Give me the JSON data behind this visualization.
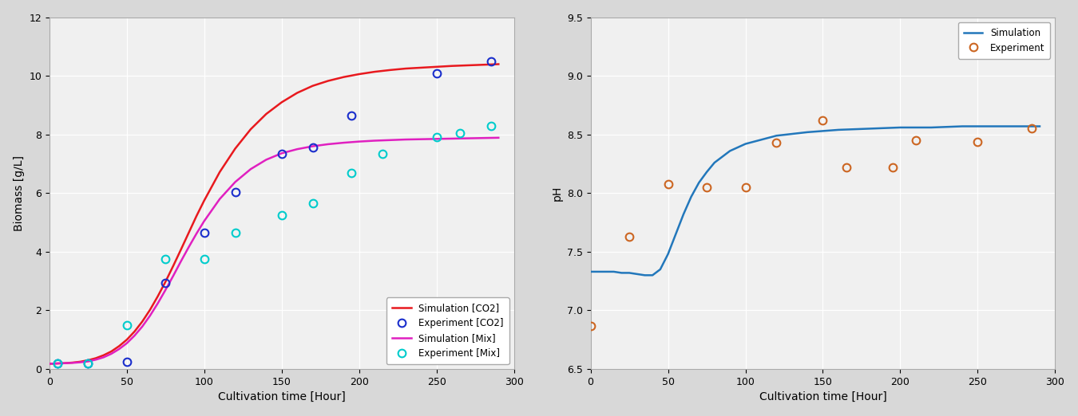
{
  "left": {
    "sim_co2_x": [
      0,
      5,
      10,
      15,
      20,
      25,
      30,
      35,
      40,
      45,
      50,
      55,
      60,
      65,
      70,
      75,
      80,
      85,
      90,
      95,
      100,
      110,
      120,
      130,
      140,
      150,
      160,
      170,
      180,
      190,
      200,
      210,
      220,
      230,
      240,
      250,
      260,
      270,
      280,
      290
    ],
    "sim_co2_y": [
      0.18,
      0.19,
      0.2,
      0.22,
      0.25,
      0.3,
      0.37,
      0.47,
      0.6,
      0.78,
      1.0,
      1.28,
      1.62,
      2.02,
      2.48,
      2.98,
      3.52,
      4.08,
      4.65,
      5.22,
      5.75,
      6.72,
      7.52,
      8.18,
      8.7,
      9.1,
      9.42,
      9.66,
      9.83,
      9.96,
      10.06,
      10.14,
      10.2,
      10.25,
      10.28,
      10.31,
      10.34,
      10.36,
      10.38,
      10.4
    ],
    "exp_co2_x": [
      5,
      25,
      50,
      75,
      100,
      120,
      150,
      170,
      195,
      250,
      285
    ],
    "exp_co2_y": [
      0.18,
      0.18,
      0.25,
      2.95,
      4.65,
      6.05,
      7.35,
      7.55,
      8.65,
      10.1,
      10.5
    ],
    "sim_mix_x": [
      0,
      5,
      10,
      15,
      20,
      25,
      30,
      35,
      40,
      45,
      50,
      55,
      60,
      65,
      70,
      75,
      80,
      85,
      90,
      95,
      100,
      110,
      120,
      130,
      140,
      150,
      160,
      170,
      180,
      190,
      200,
      210,
      220,
      230,
      240,
      250,
      260,
      270,
      280,
      290
    ],
    "sim_mix_y": [
      0.18,
      0.19,
      0.2,
      0.21,
      0.23,
      0.26,
      0.32,
      0.4,
      0.52,
      0.68,
      0.88,
      1.14,
      1.45,
      1.82,
      2.24,
      2.7,
      3.18,
      3.68,
      4.16,
      4.62,
      5.05,
      5.8,
      6.38,
      6.82,
      7.14,
      7.36,
      7.5,
      7.6,
      7.67,
      7.72,
      7.76,
      7.79,
      7.81,
      7.83,
      7.84,
      7.85,
      7.86,
      7.87,
      7.88,
      7.89
    ],
    "exp_mix_x": [
      5,
      25,
      50,
      75,
      100,
      120,
      150,
      170,
      195,
      215,
      250,
      265,
      285
    ],
    "exp_mix_y": [
      0.18,
      0.18,
      1.5,
      3.75,
      3.75,
      4.65,
      5.25,
      5.65,
      6.7,
      7.35,
      7.9,
      8.05,
      8.3
    ],
    "ylabel": "Biomass [g/L]",
    "xlabel": "Cultivation time [Hour]",
    "ylim": [
      0,
      12
    ],
    "xlim": [
      0,
      300
    ],
    "yticks": [
      0,
      2,
      4,
      6,
      8,
      10,
      12
    ],
    "xticks": [
      0,
      50,
      100,
      150,
      200,
      250,
      300
    ],
    "sim_co2_color": "#e8191e",
    "exp_co2_color": "#1a2ecc",
    "sim_mix_color": "#e020c0",
    "exp_mix_color": "#00cccc",
    "legend_labels": [
      "Simulation [CO2]",
      "Experiment [CO2]",
      "Simulation [Mix]",
      "Experiment [Mix]"
    ]
  },
  "right": {
    "sim_x": [
      0,
      2,
      4,
      6,
      8,
      10,
      15,
      20,
      25,
      30,
      35,
      40,
      45,
      50,
      55,
      60,
      65,
      70,
      75,
      80,
      90,
      100,
      120,
      140,
      160,
      180,
      200,
      220,
      240,
      260,
      280,
      290
    ],
    "sim_y": [
      7.33,
      7.33,
      7.33,
      7.33,
      7.33,
      7.33,
      7.33,
      7.32,
      7.32,
      7.31,
      7.3,
      7.3,
      7.35,
      7.48,
      7.65,
      7.82,
      7.97,
      8.09,
      8.18,
      8.26,
      8.36,
      8.42,
      8.49,
      8.52,
      8.54,
      8.55,
      8.56,
      8.56,
      8.57,
      8.57,
      8.57,
      8.57
    ],
    "exp_x": [
      0,
      25,
      50,
      75,
      100,
      120,
      150,
      165,
      195,
      210,
      250,
      285
    ],
    "exp_y": [
      6.87,
      7.63,
      8.08,
      8.05,
      8.05,
      8.43,
      8.62,
      8.22,
      8.22,
      8.45,
      8.44,
      8.55
    ],
    "ylabel": "pH",
    "xlabel": "Cultivation time [Hour]",
    "ylim": [
      6.5,
      9.5
    ],
    "xlim": [
      0,
      300
    ],
    "yticks": [
      6.5,
      7.0,
      7.5,
      8.0,
      8.5,
      9.0,
      9.5
    ],
    "xticks": [
      0,
      50,
      100,
      150,
      200,
      250,
      300
    ],
    "sim_color": "#2277bb",
    "exp_color": "#cc6622",
    "legend_labels": [
      "Simulation",
      "Experiment"
    ]
  },
  "fig_bg_color": "#d8d8d8",
  "plot_bg_color": "#f0f0f0"
}
